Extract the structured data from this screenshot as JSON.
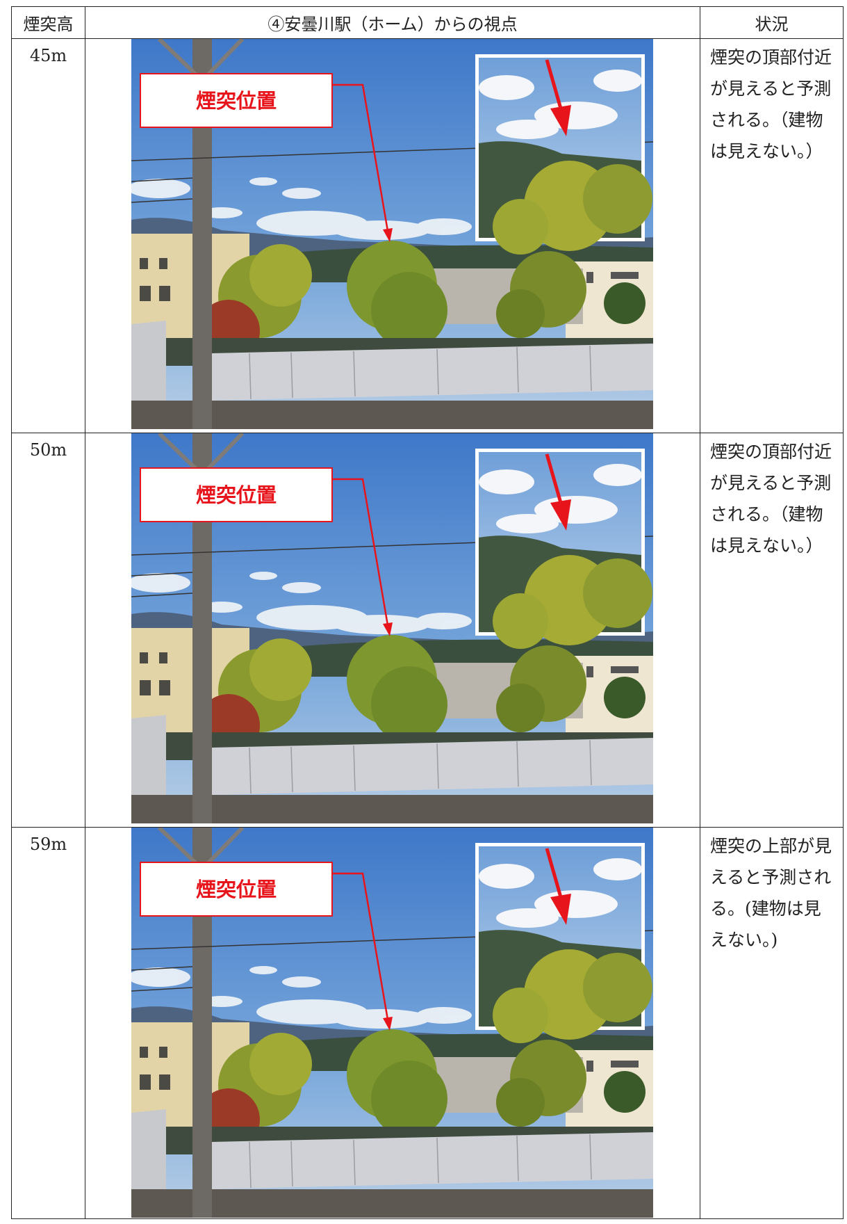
{
  "table": {
    "header": [
      "煙突高",
      "④安曇川駅（ホーム）からの視点",
      "状況"
    ],
    "rows": [
      {
        "height": "45m",
        "label": "煙突位置",
        "status": "煙突の頂部付近が見えると予測される。（建物は見えない。）"
      },
      {
        "height": "50m",
        "label": "煙突位置",
        "status": "煙突の頂部付近が見えると予測される。（建物は見えない。）"
      },
      {
        "height": "59m",
        "label": "煙突位置",
        "status": "煙突の上部が見えると予測される。(建物は見えない。)"
      }
    ]
  }
}
